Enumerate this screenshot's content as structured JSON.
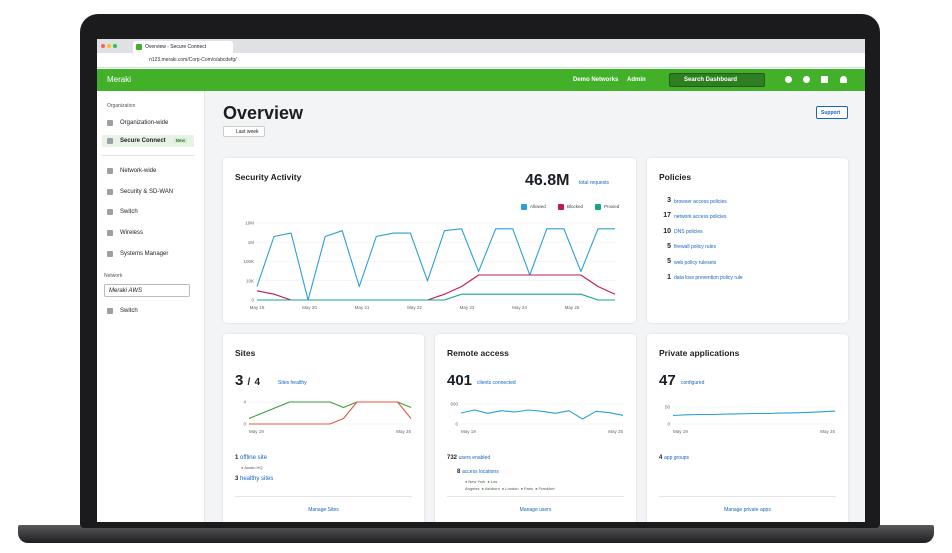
{
  "browser": {
    "tab_title": "Overview - Secure Connect",
    "url": "n123.meraki.com/Corp-Com/o/abcdefg/"
  },
  "header": {
    "brand": "Meraki",
    "network": "Demo Networks",
    "admin": "Admin",
    "search": "Search Dashboard"
  },
  "sidebar": {
    "org_label": "Organization",
    "org_items": [
      "Organization-wide",
      "Secure Connect"
    ],
    "new_badge": "New",
    "items": [
      "Network-wide",
      "Security & SD-WAN",
      "Switch",
      "Wireless",
      "Systems Manager"
    ],
    "network_label": "Network",
    "network_select": "Meraki AWS",
    "network_items": [
      "Switch"
    ]
  },
  "page": {
    "title": "Overview",
    "range": "Last week",
    "support": "Support"
  },
  "security": {
    "title": "Security Activity",
    "total": "46.8M",
    "total_label": "total requests",
    "chart": {
      "log": true,
      "ylim": [
        0,
        10000000
      ],
      "yticks": [
        {
          "value": 10000000,
          "label": "10M"
        },
        {
          "value": 1000000,
          "label": "1M"
        },
        {
          "value": 100000,
          "label": "100K"
        },
        {
          "value": 10000,
          "label": "10K"
        },
        0
      ],
      "xlabels": [
        "May 19",
        "May 20",
        "May 21",
        "May 22",
        "May 23",
        "May 24",
        "May 25"
      ],
      "series": [
        {
          "name": "Allowed",
          "color": "#2b9fd8",
          "values": [
            5000,
            2000000,
            3000000,
            0,
            2000000,
            4000000,
            5000,
            2000000,
            3000000,
            3000000,
            10000,
            4000000,
            5000000,
            30000,
            5000000,
            5000000,
            20000,
            5000000,
            5000000,
            30000,
            5000000,
            5000000
          ]
        },
        {
          "name": "Blocked",
          "color": "#c2185b",
          "values": [
            3000,
            2000,
            1000,
            0,
            1000,
            1000,
            1000,
            1000,
            1000,
            1000,
            1000,
            2000,
            5000,
            20000,
            20000,
            20000,
            20000,
            20000,
            20000,
            20000,
            5000,
            2000
          ]
        },
        {
          "name": "Proxied",
          "color": "#17a589",
          "values": [
            0,
            0,
            0,
            0,
            0,
            0,
            0,
            0,
            0,
            0,
            0,
            1000,
            2000,
            2000,
            2000,
            2000,
            2000,
            2000,
            2000,
            2000,
            1000,
            1000
          ]
        }
      ]
    }
  },
  "policies": {
    "title": "Policies",
    "items": [
      {
        "count": 3,
        "label": "browser access policies"
      },
      {
        "count": 17,
        "label": "network access policies"
      },
      {
        "count": 10,
        "label": "DNS policies"
      },
      {
        "count": 5,
        "label": "firewall policy rules"
      },
      {
        "count": 5,
        "label": "web policy rulesets"
      },
      {
        "count": 1,
        "label": "data loss prevention policy rule"
      }
    ]
  },
  "sites": {
    "title": "Sites",
    "healthy": 3,
    "separator": "/",
    "total": 4,
    "status_label": "Sites healthy",
    "chart": {
      "ylim": [
        0,
        4
      ],
      "yticks": [
        4,
        0
      ],
      "xlabels": [
        "May 19",
        "May 25"
      ],
      "series": [
        {
          "color": "#3a9d3a",
          "values": [
            1,
            2,
            3,
            4,
            4,
            4,
            4,
            3,
            4,
            4,
            4,
            4,
            3
          ]
        },
        {
          "color": "#e8553b",
          "values": [
            0,
            0,
            0,
            0,
            0,
            0,
            0,
            1,
            4,
            4,
            4,
            4,
            1
          ]
        }
      ]
    },
    "offline": {
      "count": 1,
      "label": "offline site",
      "sites": [
        "Austin HQ"
      ]
    },
    "healthy_sites": {
      "count": 3,
      "label": "healthy sites"
    },
    "footer": "Manage Sites"
  },
  "remote": {
    "title": "Remote access",
    "clients": 401,
    "clients_label": "clients connected",
    "chart": {
      "ylim": [
        0,
        600
      ],
      "yticks": [
        600,
        0
      ],
      "xlabels": [
        "May 19",
        "May 25"
      ],
      "series": [
        {
          "color": "#2b9fd8",
          "values": [
            330,
            420,
            320,
            400,
            360,
            420,
            380,
            320,
            400,
            150,
            380,
            340,
            260
          ]
        }
      ]
    },
    "users": {
      "count": 732,
      "label": "users enabled"
    },
    "locations": {
      "count": 8,
      "label": "access locations",
      "places": [
        "New York",
        "Los Angeles",
        "Ashburn",
        "London",
        "Paris",
        "Frankfurt"
      ]
    },
    "footer": "Manage users"
  },
  "private": {
    "title": "Private applications",
    "configured": 47,
    "configured_label": "configured",
    "chart": {
      "ylim": [
        0,
        50
      ],
      "yticks": [
        50,
        0
      ],
      "xlabels": [
        "May 19",
        "May 25"
      ],
      "series": [
        {
          "color": "#2b9fd8",
          "values": [
            25,
            27,
            28,
            28,
            29,
            30,
            31,
            31,
            32,
            33,
            34,
            36,
            38
          ]
        }
      ]
    },
    "groups": {
      "count": 4,
      "label": "app groups"
    },
    "footer": "Manage private apps"
  }
}
